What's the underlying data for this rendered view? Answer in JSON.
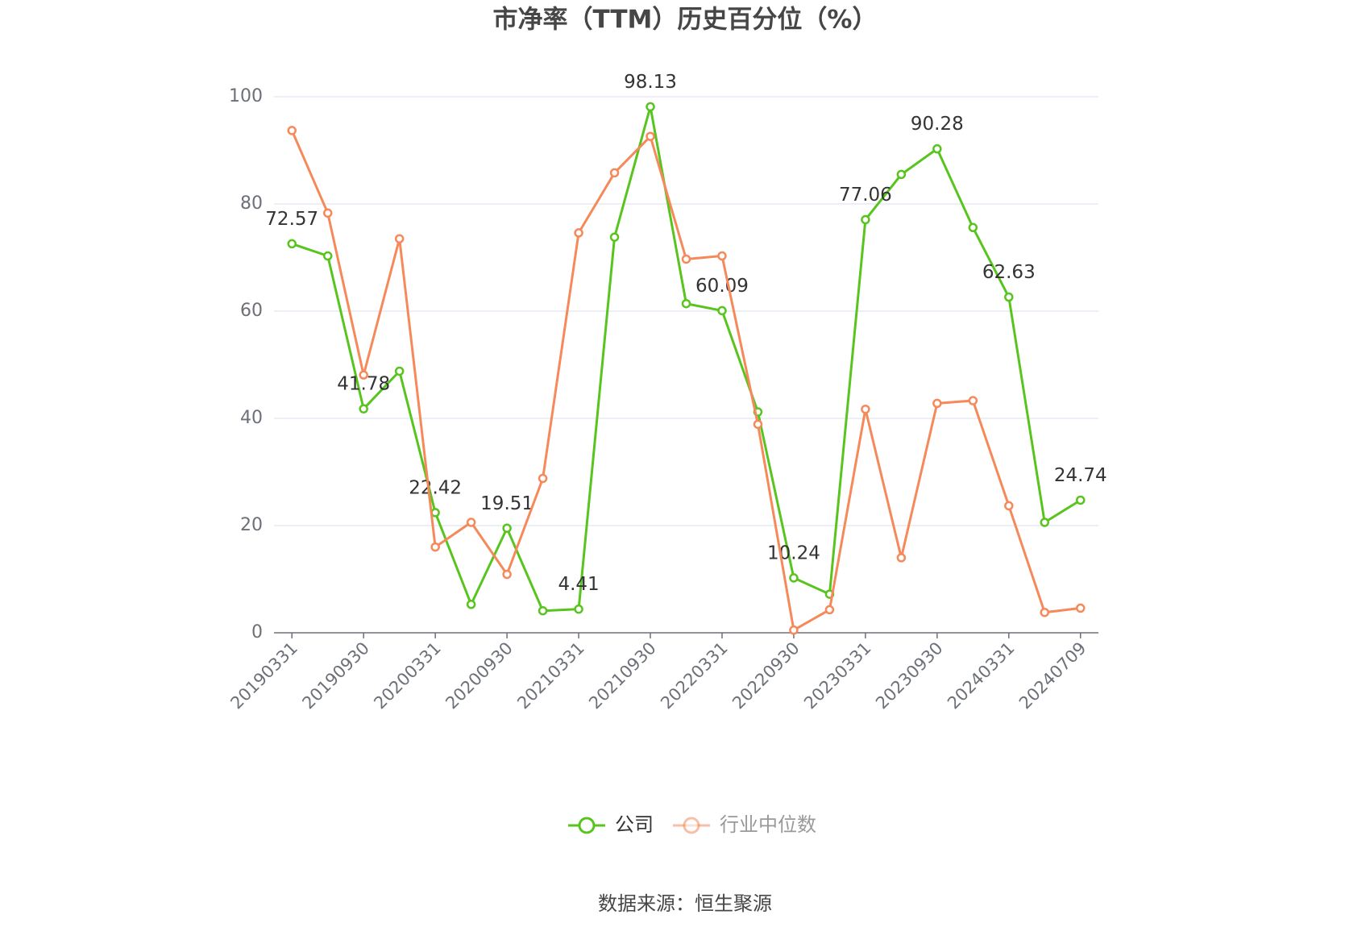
{
  "chart_data": {
    "type": "line",
    "title": "市净率（TTM）历史百分位（%）",
    "source": "数据来源：恒生聚源",
    "categories": [
      "20190331",
      null,
      "20190930",
      null,
      "20200331",
      null,
      "20200930",
      null,
      "20210331",
      null,
      "20210930",
      null,
      "20220331",
      null,
      "20220930",
      null,
      "20230331",
      null,
      "20230930",
      null,
      "20240331",
      null,
      "20240709"
    ],
    "series": [
      {
        "name": "公司",
        "color": "#58c41e",
        "values": [
          72.57,
          70.3,
          41.78,
          48.8,
          22.42,
          5.3,
          19.51,
          4.1,
          4.41,
          73.8,
          98.13,
          61.4,
          60.09,
          41.2,
          10.24,
          7.2,
          77.06,
          85.5,
          90.28,
          75.6,
          62.63,
          20.6,
          24.74
        ],
        "value_labels": [
          "72.57",
          null,
          "41.78",
          null,
          "22.42",
          null,
          "19.51",
          null,
          "4.41",
          null,
          "98.13",
          null,
          "60.09",
          null,
          "10.24",
          null,
          "77.06",
          null,
          "90.28",
          null,
          "62.63",
          null,
          "24.74"
        ]
      },
      {
        "name": "行业中位数",
        "color": "#f5895a",
        "values": [
          93.7,
          78.3,
          48.1,
          73.5,
          16.0,
          20.6,
          10.9,
          28.8,
          74.6,
          85.8,
          92.6,
          69.7,
          70.3,
          38.9,
          0.5,
          4.3,
          41.7,
          14.0,
          42.8,
          43.3,
          23.7,
          3.8,
          4.6
        ]
      }
    ],
    "ylim": [
      0,
      100
    ],
    "yticks": [
      0,
      20,
      40,
      60,
      80,
      100
    ],
    "grid": true,
    "legend": "bottom"
  }
}
